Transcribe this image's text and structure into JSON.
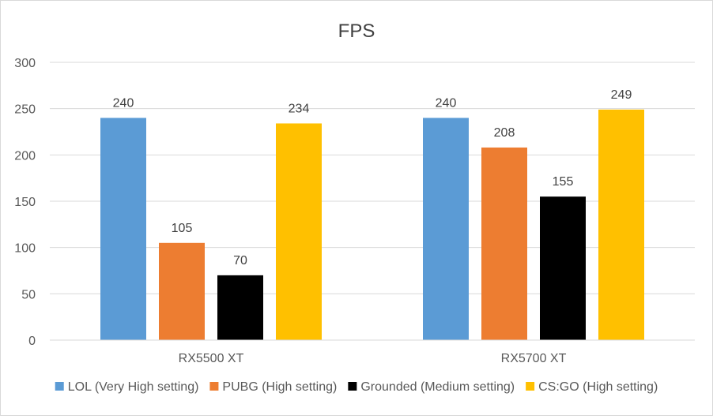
{
  "chart_data": {
    "type": "bar",
    "title": "FPS",
    "categories": [
      "RX5500 XT",
      "RX5700 XT"
    ],
    "series": [
      {
        "name": "LOL (Very High setting)",
        "color": "#5b9bd5",
        "values": [
          240,
          240
        ]
      },
      {
        "name": "PUBG (High setting)",
        "color": "#ed7d31",
        "values": [
          105,
          208
        ]
      },
      {
        "name": "Grounded (Medium setting)",
        "color": "#000000",
        "values": [
          70,
          155
        ]
      },
      {
        "name": "CS:GO (High setting)",
        "color": "#ffc000",
        "values": [
          234,
          249
        ]
      }
    ],
    "ylim": [
      0,
      300
    ],
    "yticks": [
      0,
      50,
      100,
      150,
      200,
      250,
      300
    ],
    "grid": true,
    "legend": "bottom",
    "data_labels": true,
    "colors": {
      "grid": "#d9d9d9",
      "text": "#595959",
      "title": "#404040",
      "label": "#404040"
    }
  }
}
